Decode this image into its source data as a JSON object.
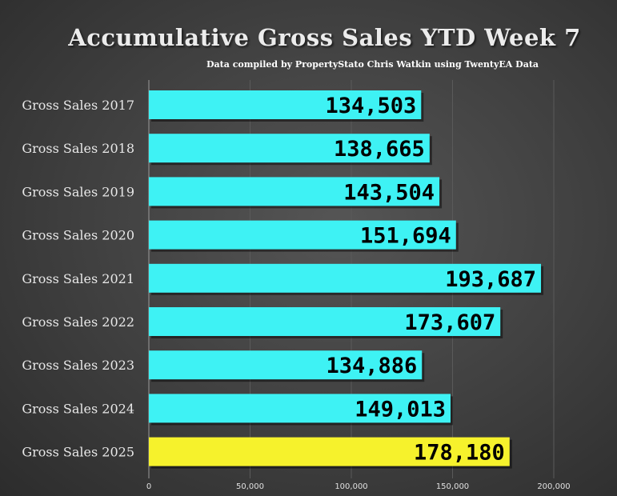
{
  "chart_data": {
    "type": "bar",
    "orientation": "horizontal",
    "title": "Accumulative Gross Sales YTD Week 7",
    "subtitle": "Data compiled by PropertyStato Chris Watkin using TwentyEA Data",
    "categories": [
      "Gross Sales 2017",
      "Gross Sales 2018",
      "Gross Sales 2019",
      "Gross Sales 2020",
      "Gross Sales 2021",
      "Gross Sales 2022",
      "Gross Sales 2023",
      "Gross Sales 2024",
      "Gross Sales 2025"
    ],
    "values": [
      134503,
      138665,
      143504,
      151694,
      193687,
      173607,
      134886,
      149013,
      178180
    ],
    "value_labels": [
      "134,503",
      "138,665",
      "143,504",
      "151,694",
      "193,687",
      "173,607",
      "134,886",
      "149,013",
      "178,180"
    ],
    "xlim": [
      0,
      200000
    ],
    "xticks": [
      0,
      50000,
      100000,
      150000,
      200000
    ],
    "xtick_labels": [
      "0",
      "50,000",
      "100,000",
      "150,000",
      "200,000"
    ],
    "grid": true,
    "colors": {
      "default_bar": "#3ef2f4",
      "highlight_bar": "#f6f22c",
      "highlight_index": 8,
      "background": "#444444",
      "label_text": "#e8e8e8"
    }
  }
}
